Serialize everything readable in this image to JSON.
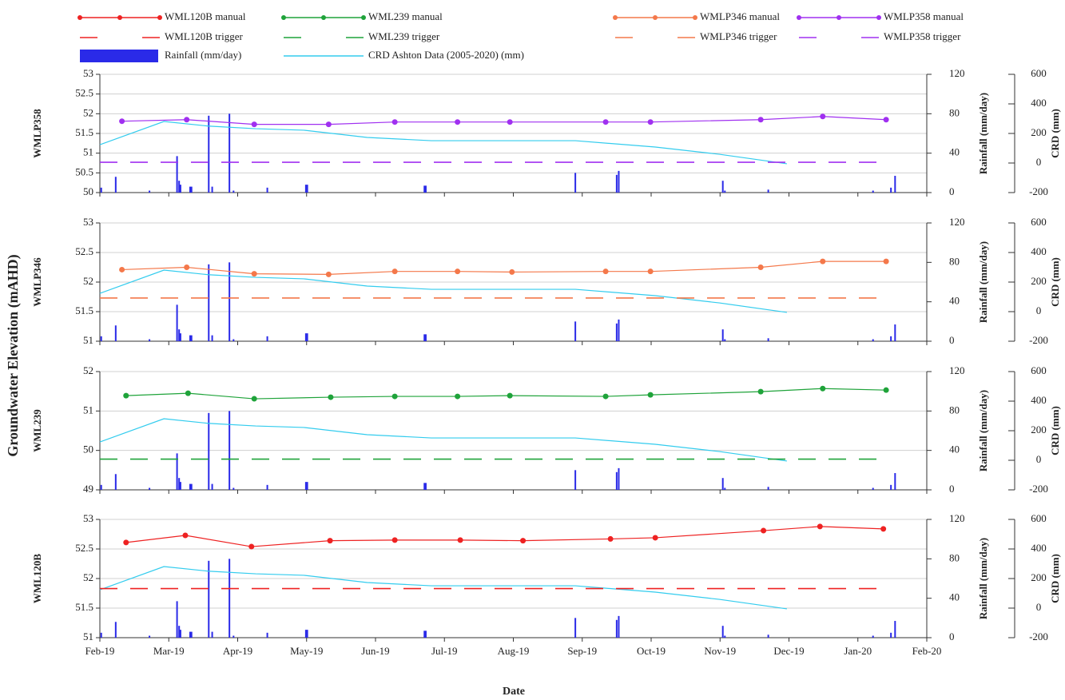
{
  "ylabel": "Groundwater Elevation (mAHD)",
  "xlabel": "Date",
  "xlim": [
    0,
    12
  ],
  "xticks": [
    {
      "value": 0,
      "label": "Feb-19"
    },
    {
      "value": 1,
      "label": "Mar-19"
    },
    {
      "value": 2,
      "label": "Apr-19"
    },
    {
      "value": 3,
      "label": "May-19"
    },
    {
      "value": 4,
      "label": "Jun-19"
    },
    {
      "value": 5,
      "label": "Jul-19"
    },
    {
      "value": 6,
      "label": "Aug-19"
    },
    {
      "value": 7,
      "label": "Sep-19"
    },
    {
      "value": 8,
      "label": "Oct-19"
    },
    {
      "value": 9,
      "label": "Nov-19"
    },
    {
      "value": 10,
      "label": "Dec-19"
    },
    {
      "value": 11,
      "label": "Jan-20"
    },
    {
      "value": 12,
      "label": "Feb-20"
    }
  ],
  "chart_data": [
    {
      "type": "line",
      "ylabel": "WMLP358",
      "y2label": "Rainfall (mm/day)",
      "y3label": "CRD (mm)",
      "ylim": [
        50,
        53
      ],
      "yticks": [
        50,
        50.5,
        51,
        51.5,
        52,
        52.5,
        53
      ],
      "y2lim": [
        0,
        120
      ],
      "y2ticks": [
        0,
        40,
        80,
        120
      ],
      "y3lim": [
        -200,
        600
      ],
      "y3ticks": [
        -200,
        0,
        200,
        400,
        600
      ],
      "grid": true,
      "series": [
        {
          "name": "Rainfall (mm/day)",
          "type": "bar",
          "axis": "y2",
          "color": "#2a2ae8",
          "x": [
            0.02,
            0.23,
            0.72,
            1.12,
            1.15,
            1.17,
            1.31,
            1.33,
            1.58,
            1.63,
            1.88,
            1.94,
            2.43,
            2.99,
            3.01,
            4.71,
            4.73,
            6.9,
            7.5,
            7.53,
            9.04,
            9.07,
            9.7,
            11.22,
            11.48,
            11.54
          ],
          "values": [
            5,
            16,
            2,
            37,
            12,
            8,
            6,
            6,
            78,
            6,
            80,
            2,
            5,
            8,
            8,
            7,
            7,
            20,
            18,
            22,
            12,
            2,
            3,
            2,
            5,
            17
          ]
        },
        {
          "name": "CRD Ashton Data (2005-2020) (mm)",
          "type": "line",
          "axis": "y3",
          "color": "#33ccee",
          "x": [
            0,
            0.93,
            1.57,
            2.26,
            2.96,
            3.88,
            4.81,
            6.1,
            6.9,
            8.06,
            8.99,
            9.97
          ],
          "values": [
            124,
            281,
            250,
            232,
            222,
            173,
            151,
            151,
            151,
            108,
            59,
            -5
          ]
        },
        {
          "name": "WMLP358 trigger",
          "type": "line",
          "dash": true,
          "color": "#a030f0",
          "x": [
            0,
            11.45
          ],
          "values": [
            50.77,
            50.77
          ]
        },
        {
          "name": "WMLP358 manual",
          "type": "line",
          "marker": true,
          "color": "#a030f0",
          "x": [
            0.32,
            1.26,
            2.24,
            3.32,
            4.28,
            5.19,
            5.95,
            7.34,
            7.99,
            9.59,
            10.49,
            11.41
          ],
          "values": [
            51.81,
            51.85,
            51.73,
            51.73,
            51.79,
            51.79,
            51.79,
            51.79,
            51.79,
            51.85,
            51.93,
            51.85
          ]
        }
      ]
    },
    {
      "type": "line",
      "ylabel": "WMLP346",
      "y2label": "Rainfall (mm/day)",
      "y3label": "CRD (mm)",
      "ylim": [
        51,
        53
      ],
      "yticks": [
        51,
        51.5,
        52,
        52.5,
        53
      ],
      "y2lim": [
        0,
        120
      ],
      "y2ticks": [
        0,
        40,
        80,
        120
      ],
      "y3lim": [
        -200,
        600
      ],
      "y3ticks": [
        -200,
        0,
        200,
        400,
        600
      ],
      "grid": true,
      "series": [
        {
          "type": "bar",
          "axis": "y2",
          "color": "#2a2ae8",
          "x": [
            0.02,
            0.23,
            0.72,
            1.12,
            1.15,
            1.17,
            1.31,
            1.33,
            1.58,
            1.63,
            1.88,
            1.94,
            2.43,
            2.99,
            3.01,
            4.71,
            4.73,
            6.9,
            7.5,
            7.53,
            9.04,
            9.07,
            9.7,
            11.22,
            11.48,
            11.54
          ],
          "values": [
            5,
            16,
            2,
            37,
            12,
            8,
            6,
            6,
            78,
            6,
            80,
            2,
            5,
            8,
            8,
            7,
            7,
            20,
            18,
            22,
            12,
            2,
            3,
            2,
            5,
            17
          ]
        },
        {
          "type": "line",
          "axis": "y3",
          "color": "#33ccee",
          "x": [
            0,
            0.93,
            1.57,
            2.26,
            2.96,
            3.88,
            4.81,
            6.1,
            6.9,
            8.06,
            8.99,
            9.97
          ],
          "values": [
            124,
            281,
            250,
            232,
            222,
            173,
            151,
            151,
            151,
            108,
            59,
            -5
          ]
        },
        {
          "name": "WMLP346 trigger",
          "type": "line",
          "dash": true,
          "color": "#f4784a",
          "x": [
            0,
            11.45
          ],
          "values": [
            51.73,
            51.73
          ]
        },
        {
          "name": "WMLP346 manual",
          "type": "line",
          "marker": true,
          "color": "#f4784a",
          "x": [
            0.32,
            1.26,
            2.24,
            3.32,
            4.28,
            5.19,
            5.98,
            7.34,
            7.99,
            9.59,
            10.49,
            11.41
          ],
          "values": [
            52.21,
            52.25,
            52.14,
            52.13,
            52.18,
            52.18,
            52.17,
            52.18,
            52.18,
            52.25,
            52.35,
            52.35
          ]
        }
      ]
    },
    {
      "type": "line",
      "ylabel": "WML239",
      "y2label": "Rainfall (mm/day)",
      "y3label": "CRD (mm)",
      "ylim": [
        49,
        52
      ],
      "yticks": [
        49,
        50,
        51,
        52
      ],
      "y2lim": [
        0,
        120
      ],
      "y2ticks": [
        0,
        40,
        80,
        120
      ],
      "y3lim": [
        -200,
        600
      ],
      "y3ticks": [
        -200,
        0,
        200,
        400,
        600
      ],
      "grid": true,
      "series": [
        {
          "type": "bar",
          "axis": "y2",
          "color": "#2a2ae8",
          "x": [
            0.02,
            0.23,
            0.72,
            1.12,
            1.15,
            1.17,
            1.31,
            1.33,
            1.58,
            1.63,
            1.88,
            1.94,
            2.43,
            2.99,
            3.01,
            4.71,
            4.73,
            6.9,
            7.5,
            7.53,
            9.04,
            9.07,
            9.7,
            11.22,
            11.48,
            11.54
          ],
          "values": [
            5,
            16,
            2,
            37,
            12,
            8,
            6,
            6,
            78,
            6,
            80,
            2,
            5,
            8,
            8,
            7,
            7,
            20,
            18,
            22,
            12,
            2,
            3,
            2,
            5,
            17
          ]
        },
        {
          "type": "line",
          "axis": "y3",
          "color": "#33ccee",
          "x": [
            0,
            0.93,
            1.57,
            2.26,
            2.96,
            3.88,
            4.81,
            6.1,
            6.9,
            8.06,
            8.99,
            9.97
          ],
          "values": [
            124,
            281,
            250,
            232,
            222,
            173,
            151,
            151,
            151,
            108,
            59,
            -5
          ]
        },
        {
          "name": "WML239 trigger",
          "type": "line",
          "dash": true,
          "color": "#1fa33a",
          "x": [
            0,
            11.45
          ],
          "values": [
            49.78,
            49.78
          ]
        },
        {
          "name": "WML239 manual",
          "type": "line",
          "marker": true,
          "color": "#1fa33a",
          "x": [
            0.38,
            1.28,
            2.24,
            3.35,
            4.28,
            5.19,
            5.95,
            7.34,
            7.99,
            9.59,
            10.49,
            11.41
          ],
          "values": [
            51.39,
            51.45,
            51.31,
            51.35,
            51.37,
            51.37,
            51.39,
            51.37,
            51.41,
            51.49,
            51.57,
            51.53
          ]
        }
      ]
    },
    {
      "type": "line",
      "ylabel": "WML120B",
      "y2label": "Rainfall (mm/day)",
      "y3label": "CRD (mm)",
      "ylim": [
        51,
        53
      ],
      "yticks": [
        51,
        51.5,
        52,
        52.5,
        53
      ],
      "y2lim": [
        0,
        120
      ],
      "y2ticks": [
        0,
        40,
        80,
        120
      ],
      "y3lim": [
        -200,
        600
      ],
      "y3ticks": [
        -200,
        0,
        200,
        400,
        600
      ],
      "grid": true,
      "series": [
        {
          "type": "bar",
          "axis": "y2",
          "color": "#2a2ae8",
          "x": [
            0.02,
            0.23,
            0.72,
            1.12,
            1.15,
            1.17,
            1.31,
            1.33,
            1.58,
            1.63,
            1.88,
            1.94,
            2.43,
            2.99,
            3.01,
            4.71,
            4.73,
            6.9,
            7.5,
            7.53,
            9.04,
            9.07,
            9.7,
            11.22,
            11.48,
            11.54
          ],
          "values": [
            5,
            16,
            2,
            37,
            12,
            8,
            6,
            6,
            78,
            6,
            80,
            2,
            5,
            8,
            8,
            7,
            7,
            20,
            18,
            22,
            12,
            2,
            3,
            2,
            5,
            17
          ]
        },
        {
          "type": "line",
          "axis": "y3",
          "color": "#33ccee",
          "x": [
            0,
            0.93,
            1.57,
            2.26,
            2.96,
            3.88,
            4.81,
            6.1,
            6.9,
            8.06,
            8.99,
            9.97
          ],
          "values": [
            124,
            281,
            250,
            232,
            222,
            173,
            151,
            151,
            151,
            108,
            59,
            -5
          ]
        },
        {
          "name": "WML120B trigger",
          "type": "line",
          "dash": true,
          "color": "#ee2222",
          "x": [
            0,
            11.45
          ],
          "values": [
            51.83,
            51.83
          ]
        },
        {
          "name": "WML120B manual",
          "type": "line",
          "marker": true,
          "color": "#ee2222",
          "x": [
            0.38,
            1.24,
            2.2,
            3.34,
            4.28,
            5.23,
            6.14,
            7.41,
            8.06,
            9.63,
            10.45,
            11.37
          ],
          "values": [
            52.61,
            52.73,
            52.54,
            52.64,
            52.65,
            52.65,
            52.64,
            52.67,
            52.69,
            52.81,
            52.88,
            52.84
          ]
        }
      ]
    }
  ]
}
